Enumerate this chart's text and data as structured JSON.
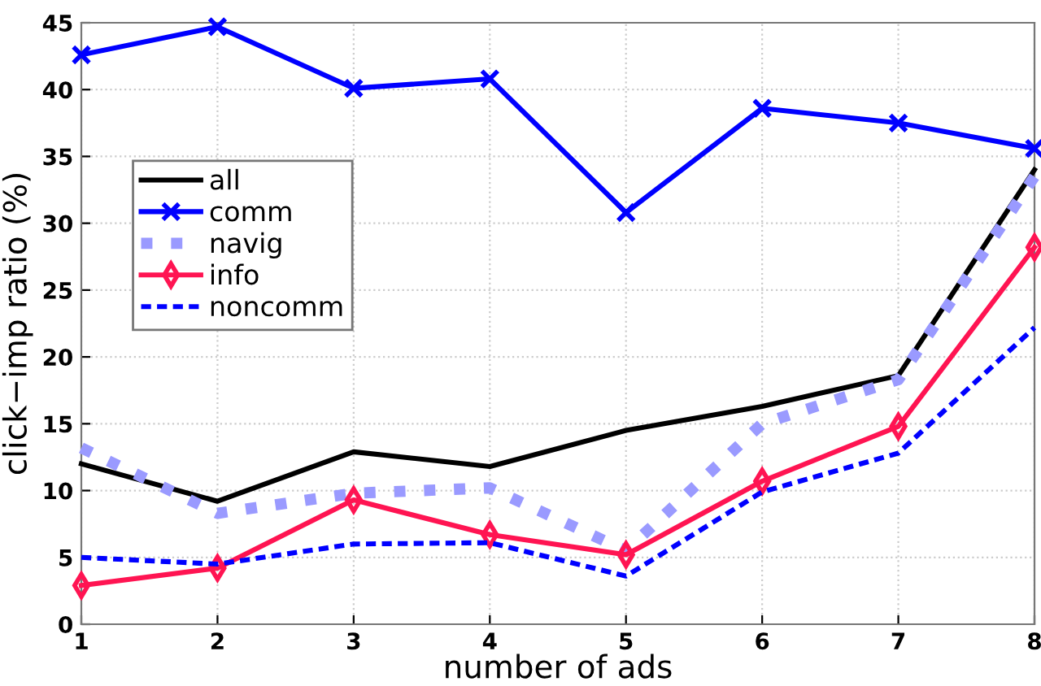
{
  "chart_data": {
    "type": "line",
    "xlabel": "number of ads",
    "ylabel": "click−imp ratio (%)",
    "x": [
      1,
      2,
      3,
      4,
      5,
      6,
      7,
      8
    ],
    "series": [
      {
        "name": "all",
        "color": "#000000",
        "line_style": "solid",
        "marker": "none",
        "values": [
          12,
          9.2,
          12.9,
          11.8,
          14.5,
          16.3,
          18.6,
          34
        ]
      },
      {
        "name": "comm",
        "color": "#0000ff",
        "line_style": "solid",
        "marker": "cross",
        "values": [
          42.6,
          44.7,
          40.1,
          40.8,
          30.8,
          38.6,
          37.5,
          35.6
        ]
      },
      {
        "name": "navig",
        "color": "#9a9aff",
        "line_style": "dotted",
        "marker": "none",
        "values": [
          13.2,
          8.3,
          9.8,
          10.2,
          5.5,
          15,
          18.3,
          33.5
        ]
      },
      {
        "name": "info",
        "color": "#ff1452",
        "line_style": "solid",
        "marker": "diamond",
        "values": [
          2.9,
          4.2,
          9.3,
          6.7,
          5.2,
          10.7,
          14.8,
          28.2
        ]
      },
      {
        "name": "noncomm",
        "color": "#0000ff",
        "line_style": "dashed",
        "marker": "none",
        "values": [
          5,
          4.5,
          6,
          6.1,
          3.6,
          9.9,
          12.8,
          22.2
        ]
      }
    ],
    "xlim": [
      1,
      8
    ],
    "ylim": [
      0,
      45
    ],
    "xticks": [
      1,
      2,
      3,
      4,
      5,
      6,
      7,
      8
    ],
    "yticks": [
      0,
      5,
      10,
      15,
      20,
      25,
      30,
      35,
      40,
      45
    ],
    "grid": true,
    "legend": "center left"
  }
}
